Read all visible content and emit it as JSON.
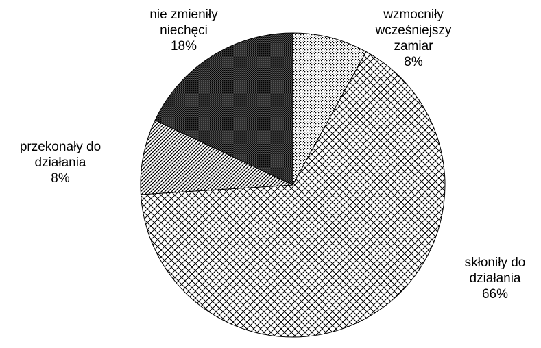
{
  "chart_data": {
    "type": "pie",
    "categories": [
      "wzmocniły wcześniejszy zamiar",
      "skłoniły do działania",
      "przekonały do działania",
      "nie zmieniły niechęci"
    ],
    "values": [
      8,
      66,
      8,
      18
    ],
    "value_labels": [
      "8%",
      "66%",
      "8%",
      "18%"
    ]
  }
}
